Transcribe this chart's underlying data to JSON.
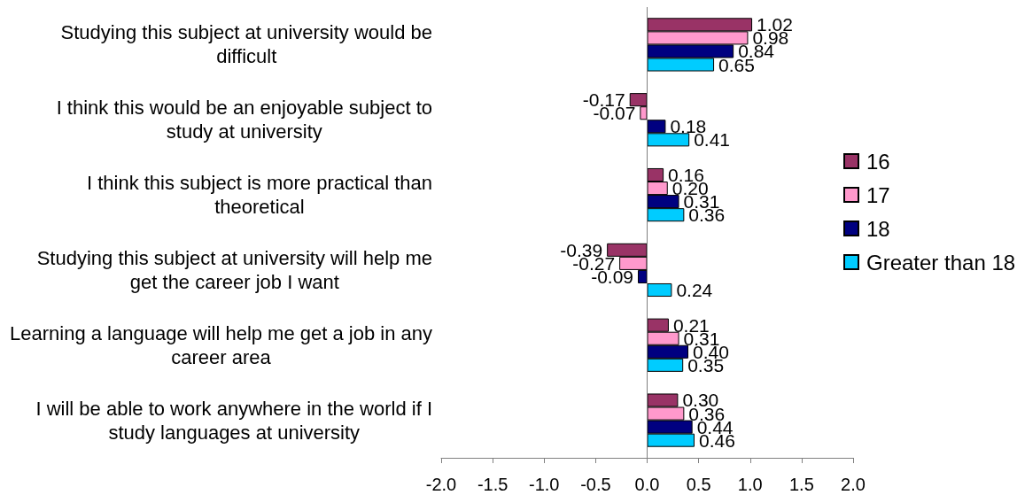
{
  "chart_data": {
    "type": "bar",
    "orientation": "horizontal",
    "categories": [
      "Studying this subject at university would be difficult",
      "I think this would be an enjoyable subject to study at university",
      "I think this subject is more practical than theoretical",
      "Studying this subject at university will help me get the career job I want",
      "Learning a language will help me get a job in any career area",
      "I will be able to work anywhere in the world if I study languages at university"
    ],
    "series": [
      {
        "name": "16",
        "color": "#993366",
        "values": [
          1.02,
          -0.17,
          0.16,
          -0.39,
          0.21,
          0.3
        ],
        "value_labels": [
          "1.02",
          "-0.17",
          "0.16",
          "-0.39",
          "0.21",
          "0.30"
        ]
      },
      {
        "name": "17",
        "color": "#ff99cc",
        "values": [
          0.98,
          -0.07,
          0.2,
          -0.27,
          0.31,
          0.36
        ],
        "value_labels": [
          "0.98",
          "-0.07",
          "0.20",
          "-0.27",
          "0.31",
          "0.36"
        ]
      },
      {
        "name": "18",
        "color": "#000080",
        "values": [
          0.84,
          0.18,
          0.31,
          -0.09,
          0.4,
          0.44
        ],
        "value_labels": [
          "0.84",
          "0.18",
          "0.31",
          "-0.09",
          "0.40",
          "0.44"
        ]
      },
      {
        "name": "Greater than 18",
        "color": "#00ccff",
        "values": [
          0.65,
          0.41,
          0.36,
          0.24,
          0.35,
          0.46
        ],
        "value_labels": [
          "0.65",
          "0.41",
          "0.36",
          "0.24",
          "0.35",
          "0.46"
        ]
      }
    ],
    "xlim": [
      -2,
      2
    ],
    "xticks": [
      {
        "value": -2,
        "label": "-2.0"
      },
      {
        "value": -1.5,
        "label": "-1.5"
      },
      {
        "value": -1,
        "label": "-1.0"
      },
      {
        "value": -0.5,
        "label": "-0.5"
      },
      {
        "value": 0,
        "label": "0.0"
      },
      {
        "value": 0.5,
        "label": "0.5"
      },
      {
        "value": 1,
        "label": "1.0"
      },
      {
        "value": 1.5,
        "label": "1.5"
      },
      {
        "value": 2,
        "label": "2.0"
      }
    ],
    "ref_lines": [
      {
        "axis": "x",
        "value": 0,
        "color": "#808080"
      }
    ],
    "grid": false,
    "legend": "right"
  }
}
